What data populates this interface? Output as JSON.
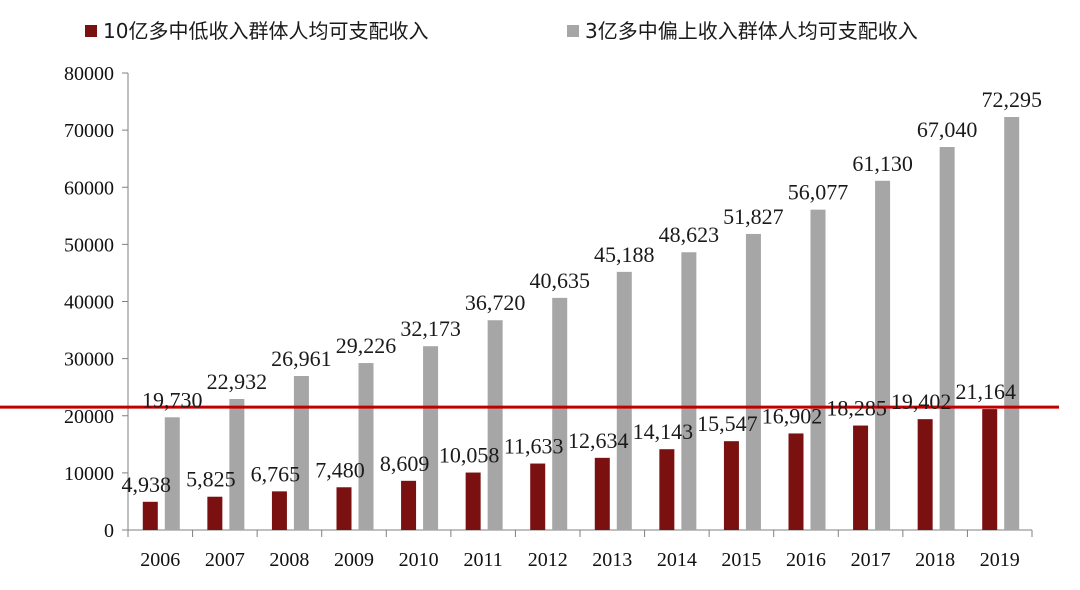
{
  "chart_data": {
    "type": "bar",
    "categories": [
      "2006",
      "2007",
      "2008",
      "2009",
      "2010",
      "2011",
      "2012",
      "2013",
      "2014",
      "2015",
      "2016",
      "2017",
      "2018",
      "2019"
    ],
    "series": [
      {
        "name": "10亿多中低收入群体人均可支配收入",
        "color": "#7b1010",
        "values": [
          4938,
          5825,
          6765,
          7480,
          8609,
          10058,
          11633,
          12634,
          14143,
          15547,
          16902,
          18285,
          19402,
          21164
        ],
        "labels": [
          "4,938",
          "5,825",
          "6,765",
          "7,480",
          "8,609",
          "10,058",
          "11,633",
          "12,634",
          "14,143",
          "15,547",
          "16,902",
          "18,285",
          "19,402",
          "21,164"
        ]
      },
      {
        "name": "3亿多中偏上收入群体人均可支配收入",
        "color": "#a6a6a6",
        "values": [
          19730,
          22932,
          26961,
          29226,
          32173,
          36720,
          40635,
          45188,
          48623,
          51827,
          56077,
          61130,
          67040,
          72295
        ],
        "labels": [
          "19,730",
          "22,932",
          "26,961",
          "29,226",
          "32,173",
          "36,720",
          "40,635",
          "45,188",
          "48,623",
          "51,827",
          "56,077",
          "61,130",
          "67,040",
          "72,295"
        ]
      }
    ],
    "yticks": [
      "0",
      "10000",
      "20000",
      "30000",
      "40000",
      "50000",
      "60000",
      "70000",
      "80000"
    ],
    "ylim": [
      0,
      80000
    ],
    "reference_line": {
      "value": 21500,
      "color": "#c00000"
    },
    "legend_position": "top",
    "grid": false
  }
}
